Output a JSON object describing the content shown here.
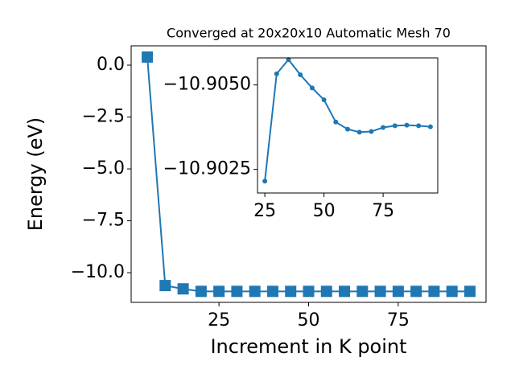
{
  "chart_data": [
    {
      "type": "line",
      "title": "Converged at 20x20x10 Automatic Mesh 70",
      "xlabel": "Increment in K point",
      "ylabel": "Energy (eV)",
      "x": [
        5,
        10,
        15,
        20,
        25,
        30,
        35,
        40,
        45,
        50,
        55,
        60,
        65,
        70,
        75,
        80,
        85,
        90,
        95
      ],
      "series": [
        {
          "color": "#1f77b4",
          "marker": "square",
          "values": [
            0.39,
            -10.62,
            -10.78,
            -10.9,
            -10.9,
            -10.9,
            -10.9,
            -10.9,
            -10.9,
            -10.9,
            -10.9,
            -10.9,
            -10.9,
            -10.9,
            -10.9,
            -10.9,
            -10.9,
            -10.9,
            -10.9
          ]
        }
      ],
      "xlim": [
        0.5,
        99.5
      ],
      "ylim": [
        -11.43,
        0.93
      ],
      "xticks": [
        25,
        50,
        75
      ],
      "yticks": [
        {
          "value": 0,
          "label": "0.0"
        },
        {
          "value": -2.5,
          "label": "−2.5"
        },
        {
          "value": -5,
          "label": "−5.0"
        },
        {
          "value": -7.5,
          "label": "−7.5"
        },
        {
          "value": -10,
          "label": "−10.0"
        }
      ]
    },
    {
      "type": "line",
      "x": [
        25,
        30,
        35,
        40,
        45,
        50,
        55,
        60,
        65,
        70,
        75,
        80,
        85,
        90,
        95
      ],
      "series": [
        {
          "color": "#1f77b4",
          "marker": "circle",
          "values": [
            -10.90215,
            -10.90533,
            -10.90575,
            -10.9053,
            -10.90491,
            -10.90456,
            -10.9039,
            -10.90369,
            -10.9036,
            -10.90362,
            -10.90374,
            -10.90379,
            -10.90381,
            -10.90379,
            -10.90376
          ]
        }
      ],
      "xlim": [
        21.9,
        98.1
      ],
      "ylim": [
        -10.9018,
        -10.9058
      ],
      "xticks": [
        25,
        50,
        75
      ],
      "yticks": [
        {
          "value": -10.905,
          "label": "−10.9050"
        },
        {
          "value": -10.9025,
          "label": "−10.9025"
        }
      ]
    }
  ]
}
